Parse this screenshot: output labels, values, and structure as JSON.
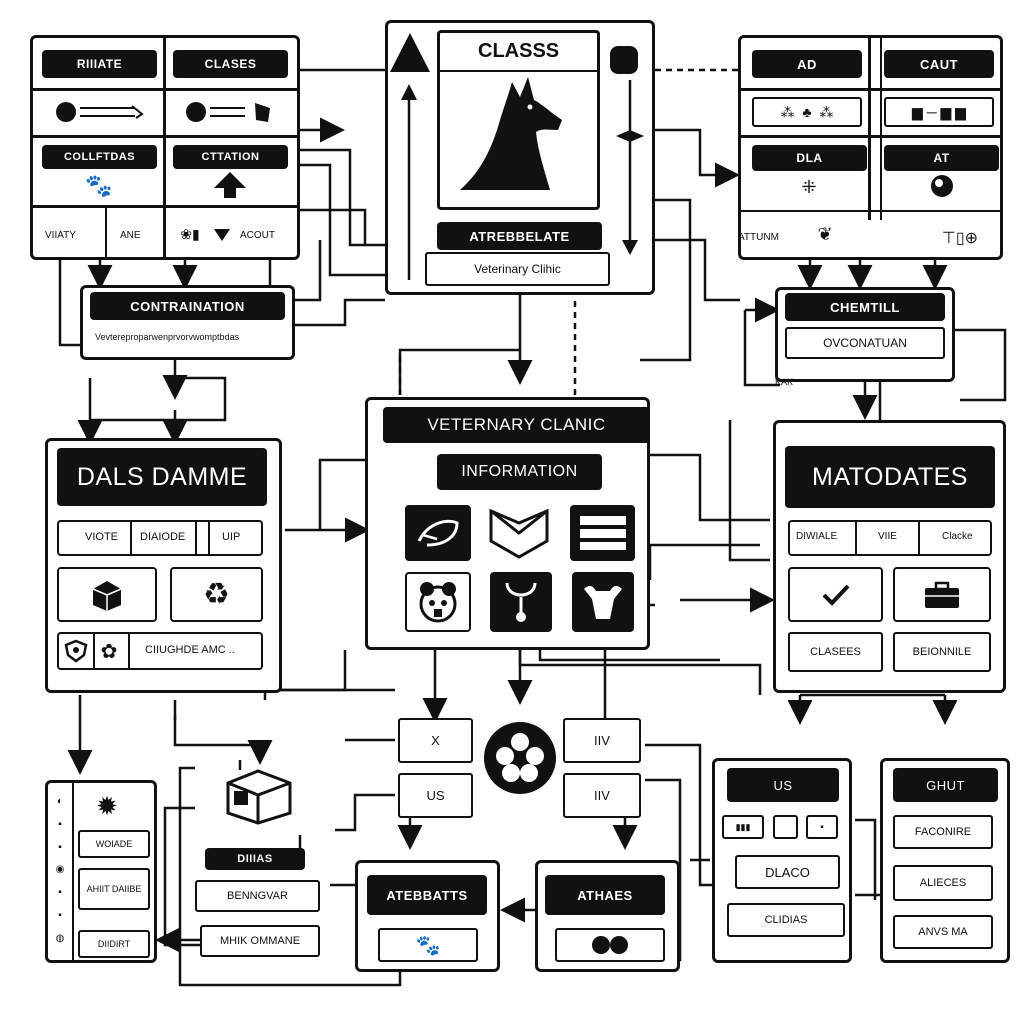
{
  "top_left": {
    "row1": [
      "RIIIATE",
      "CLASES"
    ],
    "row3": [
      "COLLFTDAS",
      "CTTATION"
    ],
    "row5": [
      "VIIATY",
      "ANE",
      "ACOUT"
    ]
  },
  "combination": {
    "title": "CONTRAINATION",
    "caption": "Vevtereproparwenprvorvwomptbdas"
  },
  "top_center": {
    "title": "CLASSS",
    "attr_label": "ATREBBELATE",
    "caption": "Veterinary Clihic"
  },
  "top_right": {
    "row1": [
      "AD",
      "CAUT"
    ],
    "row3": [
      "DLA",
      "AT"
    ],
    "row5": [
      "ATTUNM"
    ]
  },
  "chemtill": {
    "title": "CHEMTILL",
    "sub": "OVCONATUAN",
    "note": "KAK"
  },
  "center": {
    "title": "VETERNARY CLANIC",
    "subtitle": "INFORMATION"
  },
  "left_mid": {
    "title": "DALS DAMME",
    "row": [
      "VIOTE",
      "DIAIODE",
      "UIP"
    ],
    "bottom": "CIIUGHDE AMC .."
  },
  "right_mid": {
    "title": "MATODATES",
    "row": [
      "DIWIALE",
      "VIIE",
      "Clacke"
    ],
    "bottom": [
      "CLASEES",
      "BEIONNILE"
    ]
  },
  "hub": {
    "left": [
      "X",
      "US"
    ],
    "right": [
      "IIV",
      "IIV"
    ]
  },
  "bottom_left": {
    "items": [
      "WOIADE",
      "AHIIT DAIIBE",
      "DIIDIRT"
    ]
  },
  "bottom_stack": {
    "banner": "DIIIAS",
    "fields": [
      "BENNGVAR",
      "MHIK OMMANE"
    ]
  },
  "attributes": [
    "ATEBBATTS",
    "ATHAES"
  ],
  "us_panel": {
    "title": "US",
    "rows": [
      "DLACO",
      "CLIDIAS"
    ]
  },
  "ghut_panel": {
    "title": "GHUT",
    "rows": [
      "FACONIRE",
      "ALIECES",
      "ANVS MA"
    ]
  }
}
